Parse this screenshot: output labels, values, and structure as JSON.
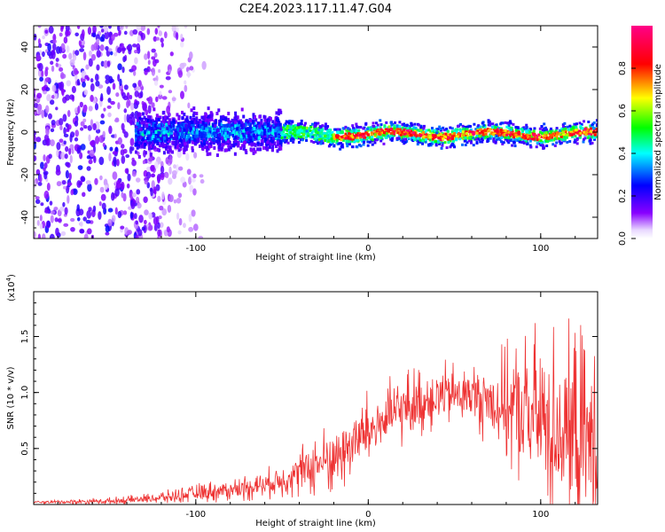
{
  "title": "C2E4.2023.117.11.47.G04",
  "chart_data": [
    {
      "type": "heatmap",
      "title": "C2E4.2023.117.11.47.G04",
      "xlabel": "Height of straight line (km)",
      "ylabel": "Frequency (Hz)",
      "xlim": [
        -194,
        133
      ],
      "ylim": [
        -50,
        50
      ],
      "xticks": [
        -100,
        0,
        100
      ],
      "yticks": [
        -40,
        -20,
        0,
        20,
        40
      ],
      "xtick_labels": [
        "-100",
        "0",
        "100"
      ],
      "ytick_labels": [
        "-40",
        "-20",
        "0",
        "20",
        "40"
      ],
      "colorbar": {
        "label": "Normalized spectral amplitude",
        "range": [
          0,
          1
        ],
        "ticks": [
          0.0,
          0.2,
          0.4,
          0.6,
          0.8
        ],
        "tick_labels": [
          "0.0",
          "0.2",
          "0.4",
          "0.6",
          "0.8"
        ],
        "colors": [
          "#ffffff",
          "#7a00ff",
          "#0000ff",
          "#00ffff",
          "#00ff00",
          "#ffff00",
          "#ff0000",
          "#ff0099"
        ]
      },
      "description_regions": [
        {
          "x_range": [
            -194,
            -135
          ],
          "freq_range": [
            -50,
            50
          ],
          "amplitude": 0.15
        },
        {
          "x_range": [
            -135,
            -50
          ],
          "freq_range": [
            -12,
            12
          ],
          "amplitude": 0.3
        },
        {
          "x_range": [
            -50,
            133
          ],
          "freq_range": [
            -5,
            3
          ],
          "amplitude": 0.6
        }
      ]
    },
    {
      "type": "line",
      "xlabel": "Height of straight line (km)",
      "ylabel": "SNR (10 * v/v)",
      "multiplier_label": "(x10",
      "multiplier_exponent": "4",
      "xlim": [
        -194,
        133
      ],
      "ylim": [
        0,
        1.9
      ],
      "xticks": [
        -100,
        0,
        100
      ],
      "yticks": [
        0.5,
        1.0,
        1.5
      ],
      "xtick_labels": [
        "-100",
        "0",
        "100"
      ],
      "ytick_labels": [
        "0.5",
        "1.0",
        "1.5"
      ],
      "series": [
        {
          "name": "SNR",
          "color": "#ee3333",
          "trend": {
            "x": [
              -194,
              -150,
              -120,
              -100,
              -80,
              -60,
              -40,
              -20,
              0,
              20,
              40,
              60,
              80,
              100,
              120,
              133
            ],
            "y": [
              0.02,
              0.03,
              0.06,
              0.1,
              0.13,
              0.18,
              0.28,
              0.42,
              0.65,
              0.86,
              0.97,
              0.98,
              0.88,
              0.75,
              0.62,
              0.55
            ]
          },
          "noise": {
            "x": [
              -194,
              -130,
              -60,
              -20,
              0,
              60,
              80,
              100,
              133
            ],
            "amplitude": [
              0.01,
              0.04,
              0.12,
              0.3,
              0.32,
              0.25,
              0.5,
              0.8,
              0.9
            ]
          }
        }
      ]
    }
  ]
}
